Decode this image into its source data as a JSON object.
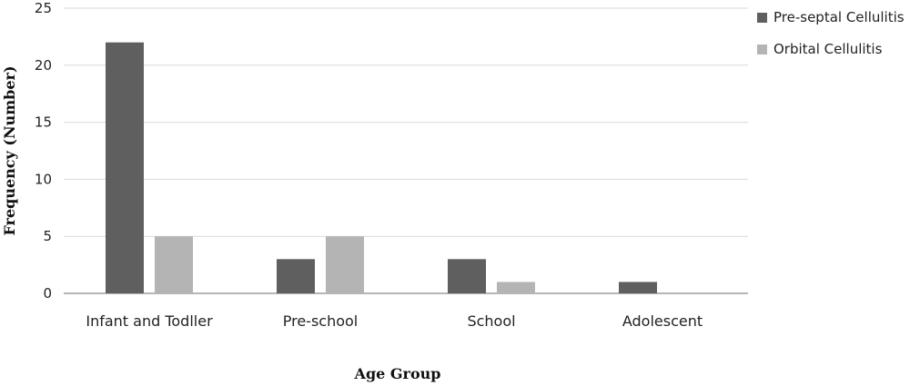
{
  "chart_data": {
    "type": "bar",
    "title": "",
    "xlabel": "Age Group",
    "ylabel": "Frequency (Number)",
    "categories": [
      "Infant and Todller",
      "Pre-school",
      "School",
      "Adolescent"
    ],
    "series": [
      {
        "name": "Pre-septal Cellulitis",
        "color": "#5f5f5f",
        "values": [
          22,
          3,
          3,
          1
        ]
      },
      {
        "name": "Orbital Cellulitis",
        "color": "#b4b4b4",
        "values": [
          5,
          5,
          1,
          0
        ]
      }
    ],
    "ylim": [
      0,
      25
    ],
    "yticks": [
      0,
      5,
      10,
      15,
      20,
      25
    ],
    "grid": true,
    "legend_position": "top-right"
  }
}
